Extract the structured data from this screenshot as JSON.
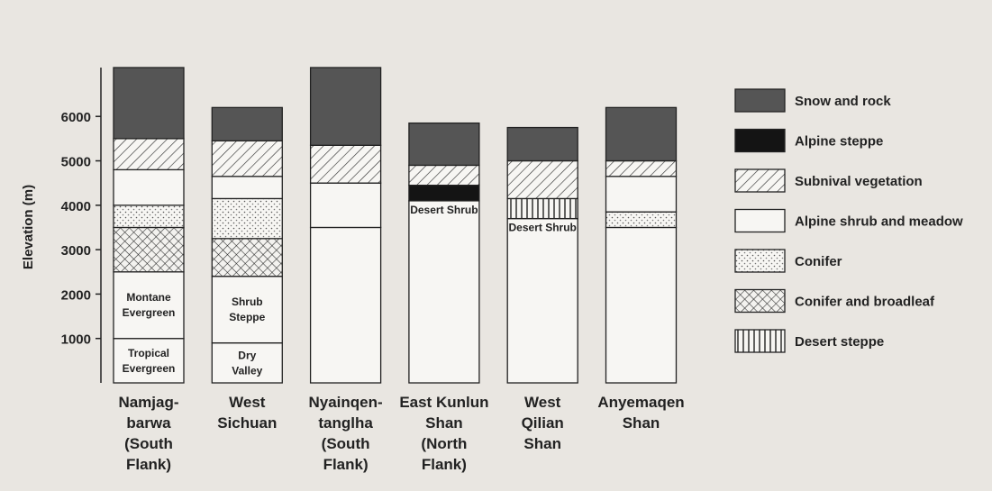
{
  "chart_data": {
    "type": "stacked-bar",
    "ylabel": "Elevation (m)",
    "ylim": [
      0,
      7100
    ],
    "yticks": [
      1000,
      2000,
      3000,
      4000,
      5000,
      6000
    ],
    "zones": [
      {
        "name": "Snow and rock",
        "pattern": "dark"
      },
      {
        "name": "Alpine steppe",
        "pattern": "black"
      },
      {
        "name": "Subnival vegetation",
        "pattern": "diagonal"
      },
      {
        "name": "Alpine shrub and meadow",
        "pattern": "plain"
      },
      {
        "name": "Conifer",
        "pattern": "dots"
      },
      {
        "name": "Conifer and broadleaf",
        "pattern": "crosshatch"
      },
      {
        "name": "Desert steppe",
        "pattern": "vertical"
      }
    ],
    "bars": [
      {
        "name": "Namjag-\nbarwa\n(South\nFlank)",
        "segments": [
          {
            "label": "Tropical\nEvergreen",
            "value": 1000
          },
          {
            "label": "Montane\nEvergreen",
            "value": 1500
          },
          {
            "zone": 5,
            "value": 1000
          },
          {
            "zone": 4,
            "value": 500
          },
          {
            "zone": 3,
            "value": 800
          },
          {
            "zone": 2,
            "value": 700
          },
          {
            "zone": 0,
            "value": 1600
          }
        ]
      },
      {
        "name": "West\nSichuan",
        "segments": [
          {
            "label": "Dry\nValley",
            "value": 900
          },
          {
            "label": "Shrub\nSteppe",
            "value": 1500
          },
          {
            "zone": 5,
            "value": 850
          },
          {
            "zone": 4,
            "value": 900
          },
          {
            "zone": 3,
            "value": 500
          },
          {
            "zone": 2,
            "value": 800
          },
          {
            "zone": 0,
            "value": 750
          }
        ]
      },
      {
        "name": "Nyainqen-\ntanglha\n(South\nFlank)",
        "segments": [
          {
            "value": 3500
          },
          {
            "zone": 3,
            "value": 1000
          },
          {
            "zone": 2,
            "value": 850
          },
          {
            "zone": 0,
            "value": 1750
          }
        ]
      },
      {
        "name": "East Kunlun\nShan\n(North\nFlank)",
        "segments": [
          {
            "label": "Desert Shrub",
            "value": 4100
          },
          {
            "zone": 1,
            "value": 350
          },
          {
            "zone": 2,
            "value": 450
          },
          {
            "zone": 0,
            "value": 950
          }
        ]
      },
      {
        "name": "West\nQilian\nShan",
        "segments": [
          {
            "label": "Desert Shrub",
            "value": 3700
          },
          {
            "zone": 6,
            "value": 450
          },
          {
            "zone": 2,
            "value": 850
          },
          {
            "zone": 0,
            "value": 750
          }
        ]
      },
      {
        "name": "Anyemaqen\nShan",
        "segments": [
          {
            "value": 3500
          },
          {
            "zone": 4,
            "value": 350
          },
          {
            "zone": 3,
            "value": 800
          },
          {
            "zone": 2,
            "value": 350
          },
          {
            "zone": 0,
            "value": 1200
          }
        ]
      }
    ]
  }
}
